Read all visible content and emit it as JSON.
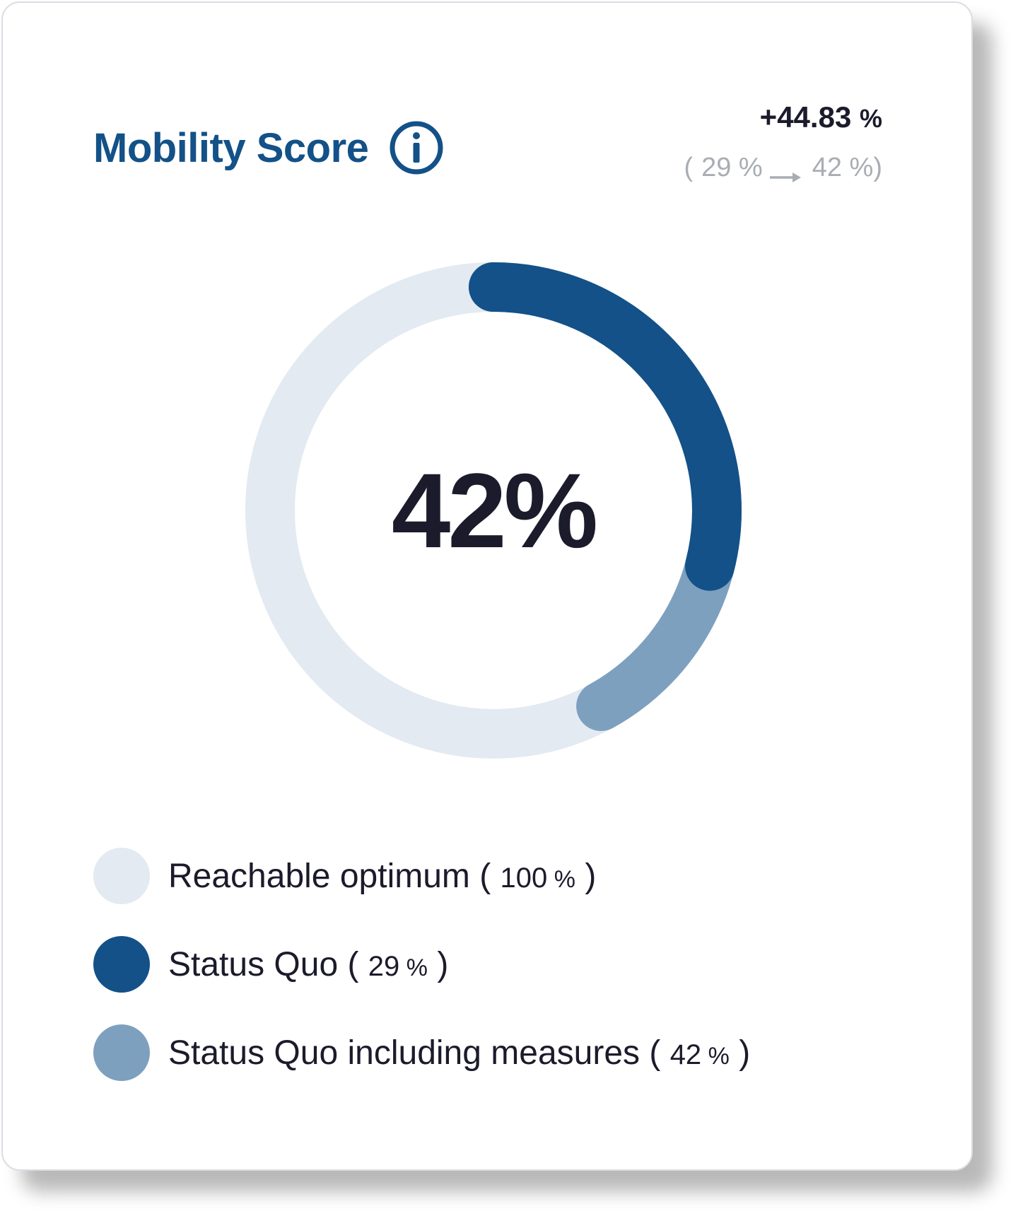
{
  "card": {
    "title": "Mobility Score",
    "info_icon": "info-icon"
  },
  "change": {
    "value": "+44.83",
    "unit": "%",
    "open": "(",
    "from": "29 %",
    "to": "42 %",
    "close": ")"
  },
  "donut": {
    "center_label": "42%"
  },
  "colors": {
    "optimum": "#e3eaf1",
    "status_quo": "#135188",
    "measures": "#7da0bf",
    "title": "#135188"
  },
  "chart_data": {
    "type": "pie",
    "variant": "donut",
    "categories": [
      "Reachable optimum",
      "Status Quo",
      "Status Quo including measures"
    ],
    "values": [
      100,
      29,
      42
    ],
    "center_label": "42%"
  },
  "legend": {
    "items": [
      {
        "label": "Reachable optimum",
        "open": " ( ",
        "value": "100",
        "unit": " %",
        "close": " )"
      },
      {
        "label": "Status Quo",
        "open": " ( ",
        "value": "29",
        "unit": " %",
        "close": " )"
      },
      {
        "label": "Status Quo including measures",
        "open": " ( ",
        "value": "42",
        "unit": " %",
        "close": " )"
      }
    ]
  }
}
